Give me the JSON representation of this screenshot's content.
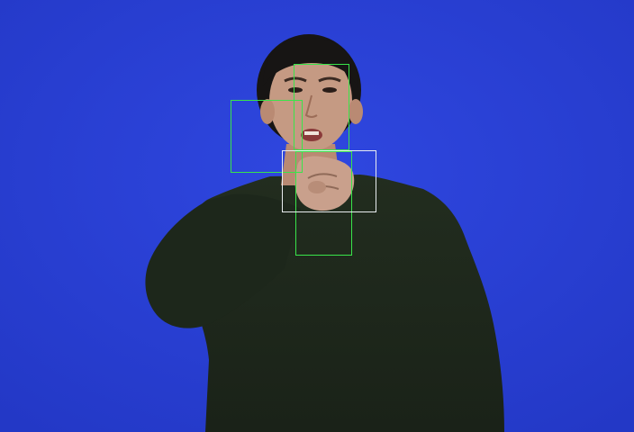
{
  "scene": {
    "background_color": "#2a3fd6",
    "clothing_color": "#1f2a1c",
    "skin_color": "#c59a83",
    "hair_color": "#171514"
  },
  "overlays": {
    "detection_box_color": "#39e44a",
    "selected_box_color": "#e9edf0",
    "detection_box_count": 3,
    "selected_box_count": 1
  }
}
